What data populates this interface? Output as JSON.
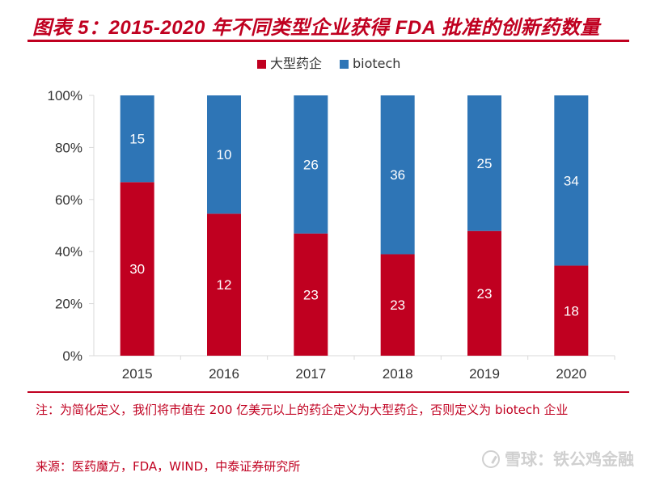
{
  "header": {
    "title": "图表 5：2015-2020 年不同类型企业获得 FDA 批准的创新药数量"
  },
  "colors": {
    "accent": "#c00020",
    "pharma": "#c00020",
    "biotech": "#2e75b6",
    "axis": "#d9d9d9"
  },
  "chart_data": {
    "type": "bar",
    "stacked": "percent",
    "title": "2015-2020 年不同类型企业获得 FDA 批准的创新药数量",
    "categories": [
      "2015",
      "2016",
      "2017",
      "2018",
      "2019",
      "2020"
    ],
    "series": [
      {
        "name": "大型药企",
        "values": [
          30,
          12,
          23,
          23,
          23,
          18
        ]
      },
      {
        "name": "biotech",
        "values": [
          15,
          10,
          26,
          36,
          25,
          34
        ]
      }
    ],
    "yticks": [
      "0%",
      "20%",
      "40%",
      "60%",
      "80%",
      "100%"
    ],
    "ylim": [
      0,
      100
    ],
    "xlabel": "",
    "ylabel": "",
    "legend": "top-center",
    "grid": false
  },
  "footer": {
    "note": "注：为简化定义，我们将市值在 200 亿美元以上的药企定义为大型药企，否则定义为 biotech 企业",
    "source": "来源：医药魔方，FDA，WIND，中泰证券研究所",
    "watermark": "雪球：铁公鸡金融"
  }
}
